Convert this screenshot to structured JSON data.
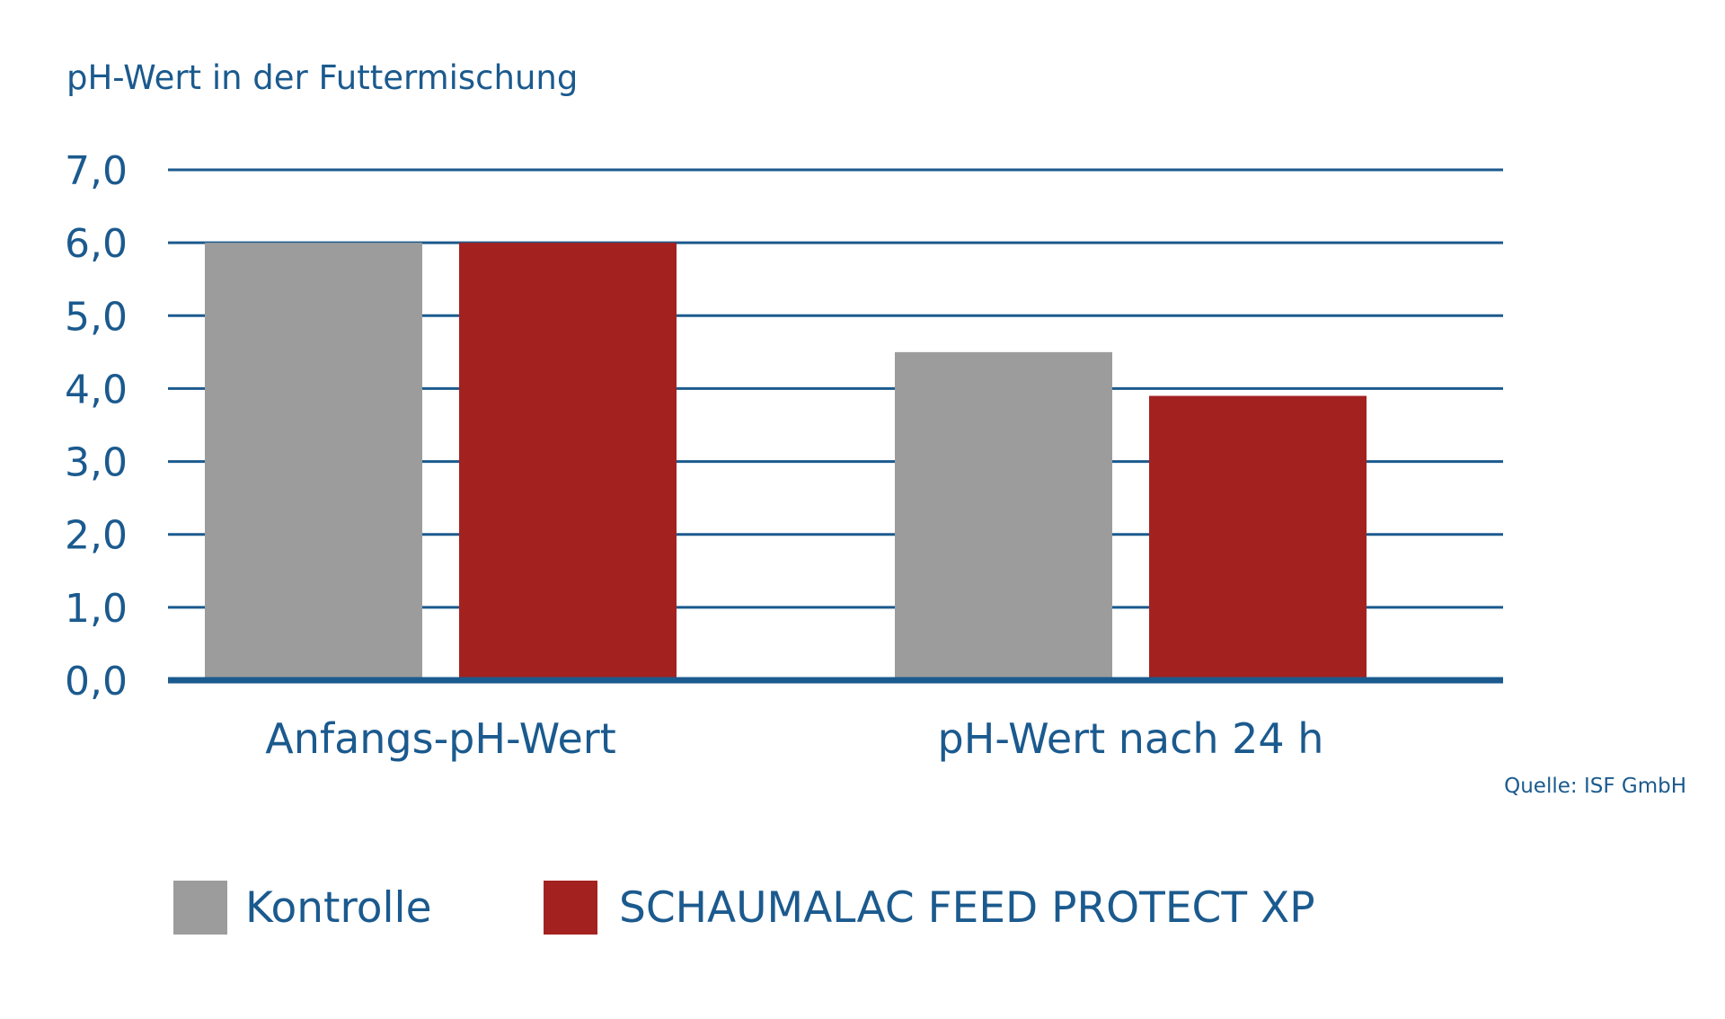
{
  "chart_data": {
    "type": "bar",
    "title": "pH-Wert in der Futtermischung",
    "xlabel": "",
    "ylabel": "",
    "ylim": [
      0,
      7
    ],
    "yticks": [
      "0,0",
      "1,0",
      "2,0",
      "3,0",
      "4,0",
      "5,0",
      "6,0",
      "7,0"
    ],
    "grid": true,
    "categories": [
      "Anfangs-pH-Wert",
      "pH-Wert nach 24 h"
    ],
    "series": [
      {
        "name": "Kontrolle",
        "values": [
          6.0,
          4.5
        ],
        "color": "#9c9c9c"
      },
      {
        "name": "SCHAUMALAC FEED PROTECT XP",
        "values": [
          6.0,
          3.9
        ],
        "color": "#a32220"
      }
    ],
    "legend_position": "bottom",
    "source": "Quelle: ISF GmbH",
    "colors": {
      "text": "#1b5a8e",
      "grid": "#1b5a8e"
    }
  }
}
